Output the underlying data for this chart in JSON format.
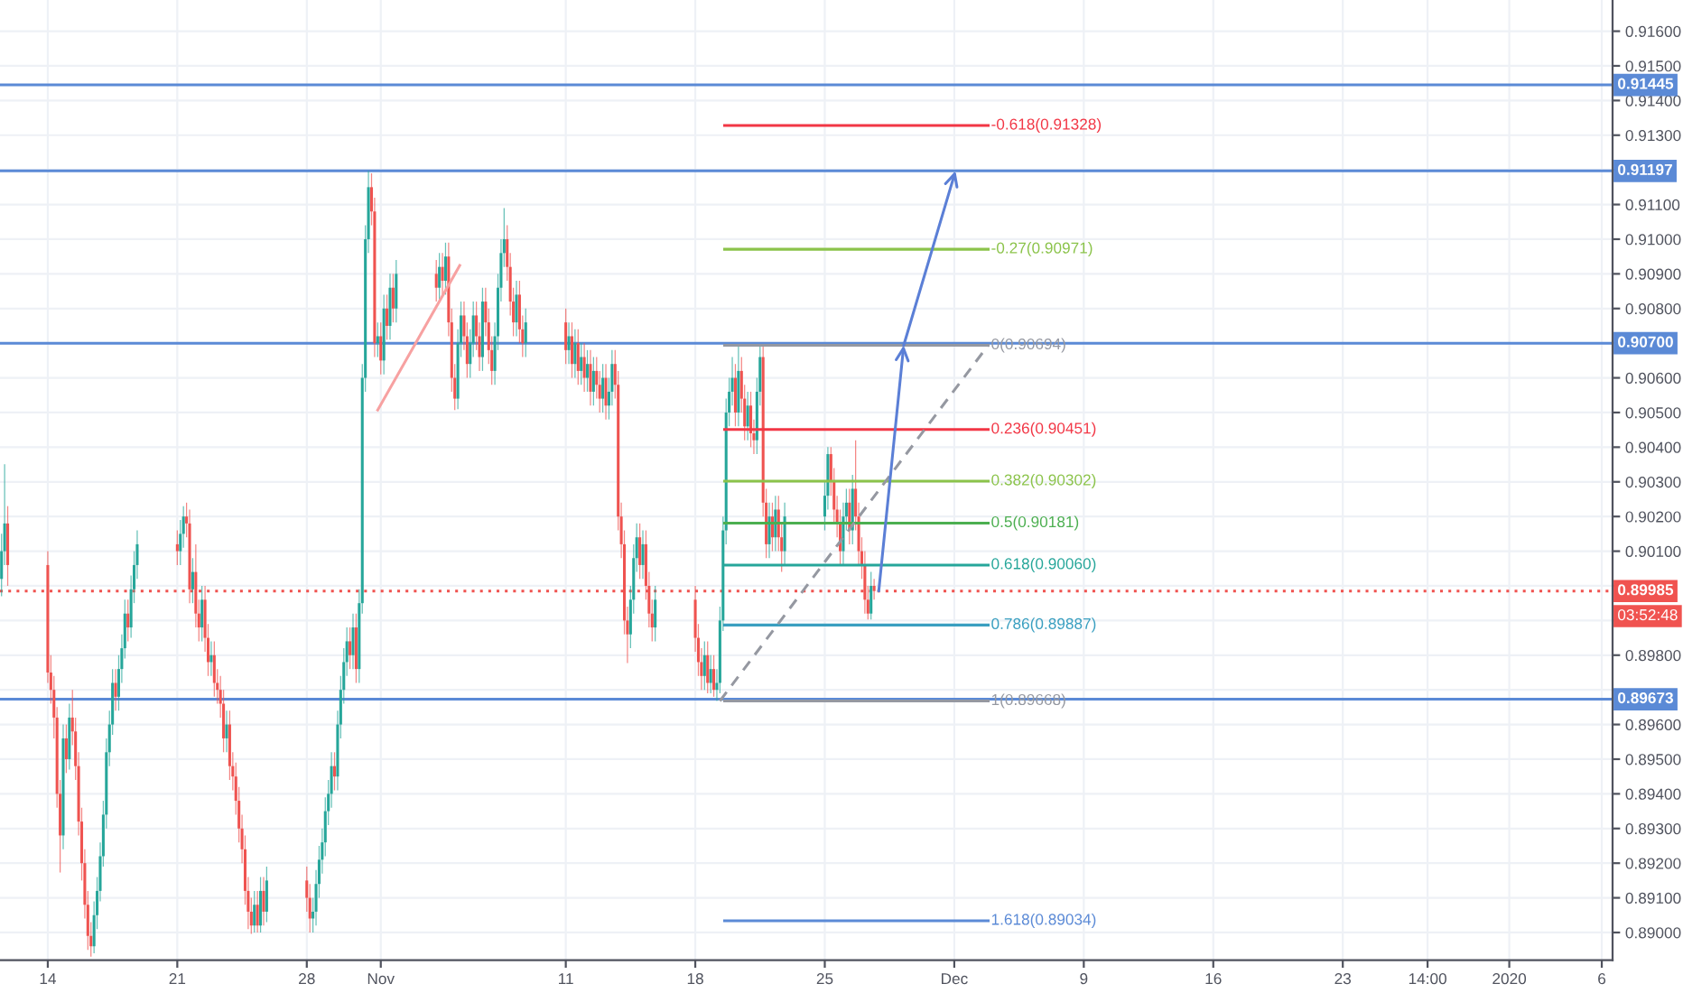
{
  "chart_data": {
    "type": "candlestick",
    "x": [
      "2019-10-11T12:00",
      "2019-10-11T16:00",
      "2019-10-11T20:00",
      "2019-10-14T00:00",
      "2019-10-14T04:00",
      "2019-10-14T08:00",
      "2019-10-14T12:00",
      "2019-10-14T16:00",
      "2019-10-14T20:00",
      "2019-10-15T00:00",
      "2019-10-15T04:00",
      "2019-10-15T08:00",
      "2019-10-15T12:00",
      "2019-10-15T16:00",
      "2019-10-15T20:00",
      "2019-10-16T00:00",
      "2019-10-16T04:00",
      "2019-10-16T08:00",
      "2019-10-16T12:00",
      "2019-10-16T16:00",
      "2019-10-16T20:00",
      "2019-10-17T00:00",
      "2019-10-17T04:00",
      "2019-10-17T08:00",
      "2019-10-17T12:00",
      "2019-10-17T16:00",
      "2019-10-17T20:00",
      "2019-10-18T00:00",
      "2019-10-18T04:00",
      "2019-10-18T08:00",
      "2019-10-18T12:00",
      "2019-10-18T16:00",
      "2019-10-18T20:00",
      "2019-10-21T00:00",
      "2019-10-21T04:00",
      "2019-10-21T08:00",
      "2019-10-21T12:00",
      "2019-10-21T16:00",
      "2019-10-21T20:00",
      "2019-10-22T00:00",
      "2019-10-22T04:00",
      "2019-10-22T08:00",
      "2019-10-22T12:00",
      "2019-10-22T16:00",
      "2019-10-22T20:00",
      "2019-10-23T00:00",
      "2019-10-23T04:00",
      "2019-10-23T08:00",
      "2019-10-23T12:00",
      "2019-10-23T16:00",
      "2019-10-23T20:00",
      "2019-10-24T00:00",
      "2019-10-24T04:00",
      "2019-10-24T08:00",
      "2019-10-24T12:00",
      "2019-10-24T16:00",
      "2019-10-24T20:00",
      "2019-10-25T00:00",
      "2019-10-25T04:00",
      "2019-10-25T08:00",
      "2019-10-25T12:00",
      "2019-10-25T16:00",
      "2019-10-25T20:00",
      "2019-10-28T00:00",
      "2019-10-28T04:00",
      "2019-10-28T08:00",
      "2019-10-28T12:00",
      "2019-10-28T16:00",
      "2019-10-28T20:00",
      "2019-10-29T00:00",
      "2019-10-29T04:00",
      "2019-10-29T08:00",
      "2019-10-29T12:00",
      "2019-10-29T16:00",
      "2019-10-29T20:00",
      "2019-10-30T00:00",
      "2019-10-30T04:00",
      "2019-10-30T08:00",
      "2019-10-30T12:00",
      "2019-10-30T16:00",
      "2019-10-30T20:00",
      "2019-10-31T00:00",
      "2019-10-31T04:00",
      "2019-10-31T08:00",
      "2019-10-31T12:00",
      "2019-10-31T16:00",
      "2019-10-31T20:00",
      "2019-11-01T00:00",
      "2019-11-01T04:00",
      "2019-11-01T08:00",
      "2019-11-01T12:00",
      "2019-11-01T16:00",
      "2019-11-01T20:00",
      "2019-11-04T00:00",
      "2019-11-04T04:00",
      "2019-11-04T08:00",
      "2019-11-04T12:00",
      "2019-11-04T16:00",
      "2019-11-04T20:00",
      "2019-11-05T00:00",
      "2019-11-05T04:00",
      "2019-11-05T08:00",
      "2019-11-05T12:00",
      "2019-11-05T16:00",
      "2019-11-05T20:00",
      "2019-11-06T00:00",
      "2019-11-06T04:00",
      "2019-11-06T08:00",
      "2019-11-06T12:00",
      "2019-11-06T16:00",
      "2019-11-06T20:00",
      "2019-11-07T00:00",
      "2019-11-07T04:00",
      "2019-11-07T08:00",
      "2019-11-07T12:00",
      "2019-11-07T16:00",
      "2019-11-07T20:00",
      "2019-11-08T00:00",
      "2019-11-08T04:00",
      "2019-11-08T08:00",
      "2019-11-08T12:00",
      "2019-11-08T16:00",
      "2019-11-08T20:00",
      "2019-11-11T00:00",
      "2019-11-11T04:00",
      "2019-11-11T08:00",
      "2019-11-11T12:00",
      "2019-11-11T16:00",
      "2019-11-11T20:00",
      "2019-11-12T00:00",
      "2019-11-12T04:00",
      "2019-11-12T08:00",
      "2019-11-12T12:00",
      "2019-11-12T16:00",
      "2019-11-12T20:00",
      "2019-11-13T00:00",
      "2019-11-13T04:00",
      "2019-11-13T08:00",
      "2019-11-13T12:00",
      "2019-11-13T16:00",
      "2019-11-13T20:00",
      "2019-11-14T00:00",
      "2019-11-14T04:00",
      "2019-11-14T08:00",
      "2019-11-14T12:00",
      "2019-11-14T16:00",
      "2019-11-14T20:00",
      "2019-11-15T00:00",
      "2019-11-15T04:00",
      "2019-11-15T08:00",
      "2019-11-15T12:00",
      "2019-11-15T16:00",
      "2019-11-15T20:00",
      "2019-11-18T00:00",
      "2019-11-18T04:00",
      "2019-11-18T08:00",
      "2019-11-18T12:00",
      "2019-11-18T16:00",
      "2019-11-18T20:00",
      "2019-11-19T00:00",
      "2019-11-19T04:00",
      "2019-11-19T08:00",
      "2019-11-19T12:00",
      "2019-11-19T16:00",
      "2019-11-19T20:00",
      "2019-11-20T00:00",
      "2019-11-20T04:00",
      "2019-11-20T08:00",
      "2019-11-20T12:00",
      "2019-11-20T16:00",
      "2019-11-20T20:00",
      "2019-11-21T00:00",
      "2019-11-21T04:00",
      "2019-11-21T08:00",
      "2019-11-21T12:00",
      "2019-11-21T16:00",
      "2019-11-21T20:00",
      "2019-11-22T00:00",
      "2019-11-22T04:00",
      "2019-11-22T08:00",
      "2019-11-22T12:00",
      "2019-11-22T16:00",
      "2019-11-22T20:00",
      "2019-11-25T00:00",
      "2019-11-25T04:00",
      "2019-11-25T08:00",
      "2019-11-25T12:00",
      "2019-11-25T16:00",
      "2019-11-25T20:00",
      "2019-11-26T00:00",
      "2019-11-26T04:00",
      "2019-11-26T08:00",
      "2019-11-26T12:00",
      "2019-11-26T16:00",
      "2019-11-26T20:00",
      "2019-11-27T00:00",
      "2019-11-27T04:00",
      "2019-11-27T08:00",
      "2019-11-27T12:00",
      "2019-11-27T16:00"
    ],
    "ohlc": [
      [
        0.9002,
        0.9015,
        0.8997,
        0.901
      ],
      [
        0.901,
        0.90351,
        0.9006,
        0.9018
      ],
      [
        0.9018,
        0.9023,
        0.9,
        0.9006
      ],
      [
        0.9006,
        0.901,
        0.8972,
        0.8975
      ],
      [
        0.8975,
        0.898,
        0.8966,
        0.897
      ],
      [
        0.897,
        0.8974,
        0.8956,
        0.8962
      ],
      [
        0.8962,
        0.8965,
        0.8936,
        0.894
      ],
      [
        0.894,
        0.8944,
        0.89173,
        0.8928
      ],
      [
        0.8928,
        0.896,
        0.8924,
        0.8956
      ],
      [
        0.8956,
        0.896,
        0.8946,
        0.895
      ],
      [
        0.895,
        0.8966,
        0.8947,
        0.8962
      ],
      [
        0.8962,
        0.897,
        0.8954,
        0.8958
      ],
      [
        0.8958,
        0.8962,
        0.8944,
        0.8948
      ],
      [
        0.8948,
        0.8952,
        0.8928,
        0.8932
      ],
      [
        0.8932,
        0.8936,
        0.8915,
        0.892
      ],
      [
        0.892,
        0.8924,
        0.8904,
        0.8908
      ],
      [
        0.8908,
        0.8912,
        0.8895,
        0.8899
      ],
      [
        0.8899,
        0.8903,
        0.8893,
        0.8896
      ],
      [
        0.8896,
        0.8909,
        0.8894,
        0.8905
      ],
      [
        0.8905,
        0.8916,
        0.8901,
        0.8912
      ],
      [
        0.8912,
        0.8926,
        0.8909,
        0.8922
      ],
      [
        0.8922,
        0.8938,
        0.8919,
        0.8934
      ],
      [
        0.8934,
        0.8956,
        0.893,
        0.8952
      ],
      [
        0.8952,
        0.8964,
        0.8948,
        0.896
      ],
      [
        0.896,
        0.8976,
        0.8957,
        0.8972
      ],
      [
        0.8972,
        0.8976,
        0.8964,
        0.8968
      ],
      [
        0.8968,
        0.898,
        0.8964,
        0.8976
      ],
      [
        0.8976,
        0.8986,
        0.8972,
        0.8982
      ],
      [
        0.8982,
        0.8996,
        0.8979,
        0.8992
      ],
      [
        0.8992,
        0.8996,
        0.8984,
        0.8988
      ],
      [
        0.8988,
        0.9003,
        0.8985,
        0.8999
      ],
      [
        0.8999,
        0.901,
        0.8995,
        0.9006
      ],
      [
        0.9006,
        0.9016,
        0.9002,
        0.9012
      ],
      [
        0.9012,
        0.9016,
        0.9006,
        0.901
      ],
      [
        0.901,
        0.9019,
        0.9006,
        0.9015
      ],
      [
        0.9015,
        0.9023,
        0.9011,
        0.902
      ],
      [
        0.902,
        0.9024,
        0.9014,
        0.9018
      ],
      [
        0.9018,
        0.9022,
        0.8995,
        0.8999
      ],
      [
        0.8999,
        0.9008,
        0.8995,
        0.9004
      ],
      [
        0.9004,
        0.9012,
        0.8988,
        0.8992
      ],
      [
        0.8992,
        0.8996,
        0.8984,
        0.8988
      ],
      [
        0.8988,
        0.9,
        0.8984,
        0.8996
      ],
      [
        0.8996,
        0.9,
        0.8981,
        0.8985
      ],
      [
        0.8985,
        0.8989,
        0.8974,
        0.8978
      ],
      [
        0.8978,
        0.8984,
        0.8974,
        0.898
      ],
      [
        0.898,
        0.8984,
        0.8968,
        0.8972
      ],
      [
        0.8972,
        0.8976,
        0.8966,
        0.897
      ],
      [
        0.897,
        0.8974,
        0.8962,
        0.8966
      ],
      [
        0.8966,
        0.897,
        0.8952,
        0.8956
      ],
      [
        0.8956,
        0.8964,
        0.8952,
        0.896
      ],
      [
        0.896,
        0.8964,
        0.8944,
        0.8948
      ],
      [
        0.8948,
        0.8952,
        0.8941,
        0.8945
      ],
      [
        0.8945,
        0.8949,
        0.8934,
        0.8938
      ],
      [
        0.8938,
        0.8942,
        0.8926,
        0.893
      ],
      [
        0.893,
        0.8934,
        0.892,
        0.8924
      ],
      [
        0.8924,
        0.8928,
        0.8908,
        0.8912
      ],
      [
        0.8912,
        0.8916,
        0.8901,
        0.8906
      ],
      [
        0.8906,
        0.891,
        0.88996,
        0.8902
      ],
      [
        0.8902,
        0.8912,
        0.89,
        0.8908
      ],
      [
        0.8908,
        0.8912,
        0.89,
        0.8902
      ],
      [
        0.8902,
        0.8916,
        0.89,
        0.8912
      ],
      [
        0.8912,
        0.8916,
        0.8902,
        0.8906
      ],
      [
        0.8906,
        0.8919,
        0.8903,
        0.8915
      ],
      [
        0.8915,
        0.8919,
        0.8906,
        0.891
      ],
      [
        0.891,
        0.8914,
        0.89,
        0.8904
      ],
      [
        0.8904,
        0.891,
        0.89,
        0.8906
      ],
      [
        0.8906,
        0.8918,
        0.8902,
        0.8914
      ],
      [
        0.8914,
        0.8925,
        0.891,
        0.8921
      ],
      [
        0.8921,
        0.893,
        0.8917,
        0.8926
      ],
      [
        0.8926,
        0.8939,
        0.8922,
        0.8935
      ],
      [
        0.8935,
        0.8944,
        0.8931,
        0.894
      ],
      [
        0.894,
        0.8952,
        0.8936,
        0.8948
      ],
      [
        0.8948,
        0.8952,
        0.8941,
        0.8945
      ],
      [
        0.8945,
        0.8964,
        0.8941,
        0.896
      ],
      [
        0.896,
        0.8974,
        0.8956,
        0.897
      ],
      [
        0.897,
        0.8982,
        0.8966,
        0.8978
      ],
      [
        0.8978,
        0.8988,
        0.8974,
        0.8984
      ],
      [
        0.8984,
        0.8988,
        0.8976,
        0.898
      ],
      [
        0.898,
        0.8992,
        0.8976,
        0.8988
      ],
      [
        0.8988,
        0.8992,
        0.8972,
        0.8976
      ],
      [
        0.8976,
        0.8999,
        0.8972,
        0.8995
      ],
      [
        0.8995,
        0.9064,
        0.8992,
        0.906
      ],
      [
        0.906,
        0.9104,
        0.9056,
        0.91
      ],
      [
        0.91,
        0.91197,
        0.9096,
        0.9115
      ],
      [
        0.9115,
        0.9119,
        0.9104,
        0.9108
      ],
      [
        0.9108,
        0.9112,
        0.9066,
        0.907
      ],
      [
        0.907,
        0.9076,
        0.9066,
        0.9072
      ],
      [
        0.9072,
        0.9076,
        0.9061,
        0.9065
      ],
      [
        0.9065,
        0.9084,
        0.9061,
        0.908
      ],
      [
        0.908,
        0.9084,
        0.9071,
        0.9075
      ],
      [
        0.9075,
        0.909,
        0.9071,
        0.9086
      ],
      [
        0.9086,
        0.909,
        0.9076,
        0.908
      ],
      [
        0.908,
        0.9094,
        0.9076,
        0.909
      ],
      [
        0.909,
        0.9094,
        0.9082,
        0.9086
      ],
      [
        0.9086,
        0.9096,
        0.9082,
        0.9092
      ],
      [
        0.9092,
        0.9096,
        0.9084,
        0.9088
      ],
      [
        0.9088,
        0.9099,
        0.9084,
        0.9095
      ],
      [
        0.9095,
        0.9099,
        0.9072,
        0.9076
      ],
      [
        0.9076,
        0.908,
        0.9056,
        0.906
      ],
      [
        0.906,
        0.9064,
        0.90507,
        0.9054
      ],
      [
        0.9054,
        0.9074,
        0.9051,
        0.907
      ],
      [
        0.907,
        0.9082,
        0.9066,
        0.9078
      ],
      [
        0.9078,
        0.9082,
        0.9068,
        0.9072
      ],
      [
        0.9072,
        0.9076,
        0.906,
        0.9064
      ],
      [
        0.9064,
        0.9074,
        0.906,
        0.907
      ],
      [
        0.907,
        0.9082,
        0.9066,
        0.9078
      ],
      [
        0.9078,
        0.9082,
        0.9068,
        0.9072
      ],
      [
        0.9072,
        0.9076,
        0.9062,
        0.9066
      ],
      [
        0.9066,
        0.9086,
        0.9062,
        0.9082
      ],
      [
        0.9082,
        0.9086,
        0.9072,
        0.9076
      ],
      [
        0.9076,
        0.908,
        0.9064,
        0.9068
      ],
      [
        0.9068,
        0.9072,
        0.9058,
        0.9062
      ],
      [
        0.9062,
        0.9076,
        0.9058,
        0.9072
      ],
      [
        0.9072,
        0.909,
        0.9068,
        0.9086
      ],
      [
        0.9086,
        0.91,
        0.9082,
        0.9096
      ],
      [
        0.9096,
        0.9109,
        0.9092,
        0.91
      ],
      [
        0.91,
        0.9104,
        0.9088,
        0.9092
      ],
      [
        0.9092,
        0.9096,
        0.9078,
        0.9082
      ],
      [
        0.9082,
        0.9086,
        0.9072,
        0.9076
      ],
      [
        0.9076,
        0.9088,
        0.9072,
        0.9084
      ],
      [
        0.9084,
        0.9088,
        0.907,
        0.9074
      ],
      [
        0.9074,
        0.9078,
        0.9066,
        0.907
      ],
      [
        0.907,
        0.908,
        0.9066,
        0.9076
      ],
      [
        0.9076,
        0.908,
        0.9064,
        0.9068
      ],
      [
        0.9068,
        0.9076,
        0.9064,
        0.9072
      ],
      [
        0.9072,
        0.9076,
        0.906,
        0.9064
      ],
      [
        0.9064,
        0.9074,
        0.906,
        0.907
      ],
      [
        0.907,
        0.9074,
        0.9058,
        0.9062
      ],
      [
        0.9062,
        0.907,
        0.9058,
        0.9066
      ],
      [
        0.9066,
        0.907,
        0.9056,
        0.906
      ],
      [
        0.906,
        0.9068,
        0.9056,
        0.9064
      ],
      [
        0.9064,
        0.9068,
        0.9052,
        0.9056
      ],
      [
        0.9056,
        0.9066,
        0.9052,
        0.9062
      ],
      [
        0.9062,
        0.9066,
        0.9054,
        0.9058
      ],
      [
        0.9058,
        0.9062,
        0.905,
        0.9054
      ],
      [
        0.9054,
        0.9064,
        0.905,
        0.906
      ],
      [
        0.906,
        0.9064,
        0.9048,
        0.9052
      ],
      [
        0.9052,
        0.906,
        0.9048,
        0.9056
      ],
      [
        0.9056,
        0.9068,
        0.9052,
        0.9064
      ],
      [
        0.9064,
        0.9068,
        0.9054,
        0.9058
      ],
      [
        0.9058,
        0.9062,
        0.9016,
        0.902
      ],
      [
        0.902,
        0.9024,
        0.9008,
        0.9012
      ],
      [
        0.9012,
        0.9016,
        0.8986,
        0.899
      ],
      [
        0.899,
        0.8994,
        0.89777,
        0.8986
      ],
      [
        0.8986,
        0.9,
        0.8982,
        0.8996
      ],
      [
        0.8996,
        0.9012,
        0.8992,
        0.9008
      ],
      [
        0.9008,
        0.9018,
        0.9004,
        0.9014
      ],
      [
        0.9014,
        0.9018,
        0.9002,
        0.9006
      ],
      [
        0.9006,
        0.9016,
        0.9002,
        0.9012
      ],
      [
        0.9012,
        0.9016,
        0.8996,
        0.9
      ],
      [
        0.9,
        0.9004,
        0.8988,
        0.8992
      ],
      [
        0.8992,
        0.8996,
        0.8984,
        0.8988
      ],
      [
        0.8988,
        0.9,
        0.8984,
        0.8996
      ],
      [
        0.8996,
        0.9,
        0.8981,
        0.8985
      ],
      [
        0.8985,
        0.8989,
        0.8974,
        0.8978
      ],
      [
        0.8978,
        0.8982,
        0.897,
        0.8974
      ],
      [
        0.8974,
        0.8984,
        0.897,
        0.898
      ],
      [
        0.898,
        0.8984,
        0.8969,
        0.8972
      ],
      [
        0.8972,
        0.898,
        0.8969,
        0.8976
      ],
      [
        0.8976,
        0.898,
        0.8968,
        0.897
      ],
      [
        0.897,
        0.8976,
        0.89668,
        0.8972
      ],
      [
        0.8972,
        0.8994,
        0.8969,
        0.899
      ],
      [
        0.899,
        0.902,
        0.8987,
        0.9016
      ],
      [
        0.9016,
        0.9054,
        0.9012,
        0.905
      ],
      [
        0.905,
        0.906,
        0.9046,
        0.9056
      ],
      [
        0.9056,
        0.9066,
        0.9052,
        0.906
      ],
      [
        0.906,
        0.9064,
        0.9046,
        0.905
      ],
      [
        0.905,
        0.90694,
        0.9046,
        0.9062
      ],
      [
        0.9062,
        0.9066,
        0.905,
        0.9054
      ],
      [
        0.9054,
        0.9058,
        0.9042,
        0.9046
      ],
      [
        0.9046,
        0.9056,
        0.9042,
        0.9052
      ],
      [
        0.9052,
        0.9056,
        0.904,
        0.9044
      ],
      [
        0.9044,
        0.9048,
        0.9038,
        0.9042
      ],
      [
        0.9042,
        0.906,
        0.9038,
        0.9056
      ],
      [
        0.9056,
        0.90694,
        0.9052,
        0.9066
      ],
      [
        0.9066,
        0.90694,
        0.902,
        0.9024
      ],
      [
        0.9024,
        0.9028,
        0.9008,
        0.9012
      ],
      [
        0.9012,
        0.9024,
        0.9008,
        0.902
      ],
      [
        0.902,
        0.9024,
        0.901,
        0.9014
      ],
      [
        0.9014,
        0.9026,
        0.901,
        0.9022
      ],
      [
        0.9022,
        0.9026,
        0.901,
        0.9014
      ],
      [
        0.9014,
        0.9018,
        0.9004,
        0.901
      ],
      [
        0.901,
        0.9024,
        0.9006,
        0.902
      ],
      [
        0.902,
        0.903,
        0.9016,
        0.9026
      ],
      [
        0.9026,
        0.904,
        0.9022,
        0.9038
      ],
      [
        0.9038,
        0.904,
        0.9026,
        0.903
      ],
      [
        0.903,
        0.9034,
        0.9018,
        0.9022
      ],
      [
        0.9022,
        0.9026,
        0.9014,
        0.9018
      ],
      [
        0.9018,
        0.9022,
        0.9006,
        0.901
      ],
      [
        0.901,
        0.9024,
        0.9006,
        0.902
      ],
      [
        0.902,
        0.9028,
        0.9016,
        0.9024
      ],
      [
        0.9024,
        0.9028,
        0.9012,
        0.9016
      ],
      [
        0.9016,
        0.9032,
        0.9012,
        0.9028
      ],
      [
        0.9028,
        0.9042,
        0.9016,
        0.902
      ],
      [
        0.902,
        0.9024,
        0.9006,
        0.901
      ],
      [
        0.901,
        0.9014,
        0.9002,
        0.9006
      ],
      [
        0.9006,
        0.901,
        0.8992,
        0.8996
      ],
      [
        0.8996,
        0.9,
        0.89903,
        0.8992
      ],
      [
        0.8992,
        0.9004,
        0.89903,
        0.9
      ],
      [
        0.9,
        0.9002,
        0.8996,
        0.89985
      ]
    ],
    "colors": [
      "#26a69a",
      "#26a69a",
      "#ef5350",
      "#ef5350",
      "#ef5350",
      "#ef5350",
      "#ef5350",
      "#ef5350",
      "#26a69a",
      "#ef5350",
      "#26a69a",
      "#ef5350",
      "#ef5350",
      "#ef5350",
      "#ef5350",
      "#ef5350",
      "#ef5350",
      "#ef5350",
      "#26a69a",
      "#26a69a",
      "#26a69a",
      "#26a69a",
      "#26a69a",
      "#26a69a",
      "#26a69a",
      "#ef5350",
      "#26a69a",
      "#26a69a",
      "#26a69a",
      "#ef5350",
      "#26a69a",
      "#26a69a",
      "#26a69a",
      "#ef5350",
      "#26a69a",
      "#26a69a",
      "#ef5350",
      "#ef5350",
      "#26a69a",
      "#ef5350",
      "#ef5350",
      "#26a69a",
      "#ef5350",
      "#ef5350",
      "#26a69a",
      "#ef5350",
      "#ef5350",
      "#ef5350",
      "#ef5350",
      "#26a69a",
      "#ef5350",
      "#ef5350",
      "#ef5350",
      "#ef5350",
      "#ef5350",
      "#ef5350",
      "#ef5350",
      "#ef5350",
      "#26a69a",
      "#ef5350",
      "#26a69a",
      "#ef5350",
      "#26a69a",
      "#ef5350",
      "#ef5350",
      "#26a69a",
      "#26a69a",
      "#26a69a",
      "#26a69a",
      "#26a69a",
      "#26a69a",
      "#26a69a",
      "#ef5350",
      "#26a69a",
      "#26a69a",
      "#26a69a",
      "#26a69a",
      "#ef5350",
      "#26a69a",
      "#ef5350",
      "#26a69a",
      "#26a69a",
      "#26a69a",
      "#26a69a",
      "#ef5350",
      "#ef5350",
      "#26a69a",
      "#ef5350",
      "#26a69a",
      "#ef5350",
      "#26a69a",
      "#ef5350",
      "#26a69a",
      "#ef5350",
      "#26a69a",
      "#ef5350",
      "#26a69a",
      "#ef5350",
      "#ef5350",
      "#ef5350",
      "#26a69a",
      "#26a69a",
      "#ef5350",
      "#ef5350",
      "#26a69a",
      "#26a69a",
      "#ef5350",
      "#ef5350",
      "#26a69a",
      "#ef5350",
      "#ef5350",
      "#ef5350",
      "#26a69a",
      "#26a69a",
      "#26a69a",
      "#26a69a",
      "#ef5350",
      "#ef5350",
      "#ef5350",
      "#26a69a",
      "#ef5350",
      "#ef5350",
      "#26a69a",
      "#ef5350",
      "#26a69a",
      "#ef5350",
      "#26a69a",
      "#ef5350",
      "#26a69a",
      "#ef5350",
      "#26a69a",
      "#ef5350",
      "#26a69a",
      "#ef5350",
      "#ef5350",
      "#26a69a",
      "#ef5350",
      "#26a69a",
      "#26a69a",
      "#ef5350",
      "#ef5350",
      "#ef5350",
      "#ef5350",
      "#ef5350",
      "#26a69a",
      "#26a69a",
      "#26a69a",
      "#ef5350",
      "#26a69a",
      "#ef5350",
      "#ef5350",
      "#ef5350",
      "#26a69a",
      "#ef5350",
      "#ef5350",
      "#ef5350",
      "#26a69a",
      "#ef5350",
      "#26a69a",
      "#ef5350",
      "#26a69a",
      "#26a69a",
      "#26a69a",
      "#26a69a",
      "#26a69a",
      "#26a69a",
      "#ef5350",
      "#26a69a",
      "#ef5350",
      "#ef5350",
      "#26a69a",
      "#ef5350",
      "#ef5350",
      "#26a69a",
      "#26a69a",
      "#ef5350",
      "#ef5350",
      "#26a69a",
      "#ef5350",
      "#26a69a",
      "#ef5350",
      "#ef5350",
      "#26a69a",
      "#26a69a",
      "#26a69a",
      "#ef5350",
      "#ef5350",
      "#ef5350",
      "#ef5350",
      "#26a69a",
      "#26a69a",
      "#ef5350",
      "#26a69a",
      "#ef5350",
      "#ef5350",
      "#ef5350",
      "#ef5350",
      "#ef5350",
      "#26a69a",
      "#ef5350"
    ],
    "series": [
      {
        "type": "line",
        "name": "-0.618(0.91328)",
        "color": "#f23645",
        "x": [
          "2019-11-19T14:00",
          "2019-12-03T20:00"
        ],
        "values": [
          0.91328,
          0.91328
        ]
      },
      {
        "type": "line",
        "name": "-0.27(0.90971)",
        "color": "#8bc34a",
        "x": [
          "2019-11-19T14:00",
          "2019-12-03T20:00"
        ],
        "values": [
          0.90971,
          0.90971
        ]
      },
      {
        "type": "line",
        "name": "0(0.90694)",
        "color": "#9598a1",
        "x": [
          "2019-11-19T14:00",
          "2019-12-03T20:00"
        ],
        "values": [
          0.90694,
          0.90694
        ]
      },
      {
        "type": "line",
        "name": "0.236(0.90451)",
        "color": "#f23645",
        "x": [
          "2019-11-19T14:00",
          "2019-12-03T20:00"
        ],
        "values": [
          0.90451,
          0.90451
        ]
      },
      {
        "type": "line",
        "name": "0.382(0.90302)",
        "color": "#8bc34a",
        "x": [
          "2019-11-19T14:00",
          "2019-12-03T20:00"
        ],
        "values": [
          0.90302,
          0.90302
        ]
      },
      {
        "type": "line",
        "name": "0.5(0.90181)",
        "color": "#4caf50",
        "x": [
          "2019-11-19T14:00",
          "2019-12-03T20:00"
        ],
        "values": [
          0.90181,
          0.90181
        ]
      },
      {
        "type": "line",
        "name": "0.618(0.90060)",
        "color": "#26a69a",
        "x": [
          "2019-11-19T14:00",
          "2019-12-03T20:00"
        ],
        "values": [
          0.9006,
          0.9006
        ]
      },
      {
        "type": "line",
        "name": "0.786(0.89887)",
        "color": "#3a9fc0",
        "x": [
          "2019-11-19T14:00",
          "2019-12-03T20:00"
        ],
        "values": [
          0.89887,
          0.89887
        ]
      },
      {
        "type": "line",
        "name": "1(0.89668)",
        "color": "#9598a1",
        "x": [
          "2019-11-19T14:00",
          "2019-12-03T20:00"
        ],
        "values": [
          0.89668,
          0.89668
        ]
      },
      {
        "type": "line",
        "name": "1.618(0.89034)",
        "color": "#5b8ad6",
        "x": [
          "2019-11-19T14:00",
          "2019-12-03T20:00"
        ],
        "values": [
          0.89034,
          0.89034
        ]
      },
      {
        "type": "line",
        "color": "#9598a1",
        "line_style": "dashed",
        "x": [
          "2019-11-19T08:00",
          "2019-12-03T20:00"
        ],
        "values": [
          0.89668,
          0.90694
        ]
      },
      {
        "type": "line",
        "color": "#f7a1a1",
        "x": [
          "2019-10-31T20:00",
          "2019-11-05T06:24"
        ],
        "values": [
          0.90507,
          0.90924
        ]
      }
    ],
    "ref_lines": [
      {
        "axis": "y",
        "value": 0.91445,
        "label": "0.91445",
        "color": "#5b8ad6"
      },
      {
        "axis": "y",
        "value": 0.91197,
        "label": "0.91197",
        "color": "#5b8ad6"
      },
      {
        "axis": "y",
        "value": 0.907,
        "label": "0.90700",
        "color": "#5b8ad6"
      },
      {
        "axis": "y",
        "value": 0.89673,
        "label": "0.89673",
        "color": "#5b8ad6"
      },
      {
        "axis": "y",
        "value": 0.89985,
        "label": "0.89985",
        "color": "#f05350",
        "line_style": "dotted"
      }
    ],
    "annotations": [
      "03:52:48"
    ],
    "xlim": [
      "2019-10-11T10:00",
      "2020-01-06T14:00"
    ],
    "ylim": [
      0.8892,
      0.9169
    ],
    "xticks": [
      {
        "value": "2019-10-14",
        "label": "14"
      },
      {
        "value": "2019-10-21",
        "label": "21"
      },
      {
        "value": "2019-10-28",
        "label": "28"
      },
      {
        "value": "2019-11-01",
        "label": "Nov"
      },
      {
        "value": "2019-11-11",
        "label": "11"
      },
      {
        "value": "2019-11-18",
        "label": "18"
      },
      {
        "value": "2019-11-25",
        "label": "25"
      },
      {
        "value": "2019-12-02",
        "label": "Dec"
      },
      {
        "value": "2019-12-09",
        "label": "9"
      },
      {
        "value": "2019-12-16",
        "label": "16"
      },
      {
        "value": "2019-12-23",
        "label": "23"
      },
      {
        "value": "2019-12-27T14:00",
        "label": "14:00"
      },
      {
        "value": "2020-01-01",
        "label": "2020"
      },
      {
        "value": "2020-01-06",
        "label": "6"
      }
    ],
    "yticks": [
      {
        "value": 0.89,
        "label": "0.89000"
      },
      {
        "value": 0.891,
        "label": "0.89100"
      },
      {
        "value": 0.892,
        "label": "0.89200"
      },
      {
        "value": 0.893,
        "label": "0.89300"
      },
      {
        "value": 0.894,
        "label": "0.89400"
      },
      {
        "value": 0.895,
        "label": "0.89500"
      },
      {
        "value": 0.896,
        "label": "0.89600"
      },
      {
        "value": 0.897,
        "label": null
      },
      {
        "value": 0.898,
        "label": "0.89800"
      },
      {
        "value": 0.899,
        "label": null
      },
      {
        "value": 0.9,
        "label": null
      },
      {
        "value": 0.901,
        "label": "0.90100"
      },
      {
        "value": 0.902,
        "label": "0.90200"
      },
      {
        "value": 0.903,
        "label": "0.90300"
      },
      {
        "value": 0.904,
        "label": "0.90400"
      },
      {
        "value": 0.905,
        "label": "0.90500"
      },
      {
        "value": 0.906,
        "label": "0.90600"
      },
      {
        "value": 0.907,
        "label": null
      },
      {
        "value": 0.908,
        "label": "0.90800"
      },
      {
        "value": 0.909,
        "label": "0.90900"
      },
      {
        "value": 0.91,
        "label": "0.91000"
      },
      {
        "value": 0.911,
        "label": "0.91100"
      },
      {
        "value": 0.912,
        "label": null
      },
      {
        "value": 0.913,
        "label": "0.91300"
      },
      {
        "value": 0.914,
        "label": "0.91400"
      },
      {
        "value": 0.915,
        "label": "0.91500"
      },
      {
        "value": 0.916,
        "label": "0.91600"
      }
    ],
    "grid": true,
    "legend": false
  }
}
